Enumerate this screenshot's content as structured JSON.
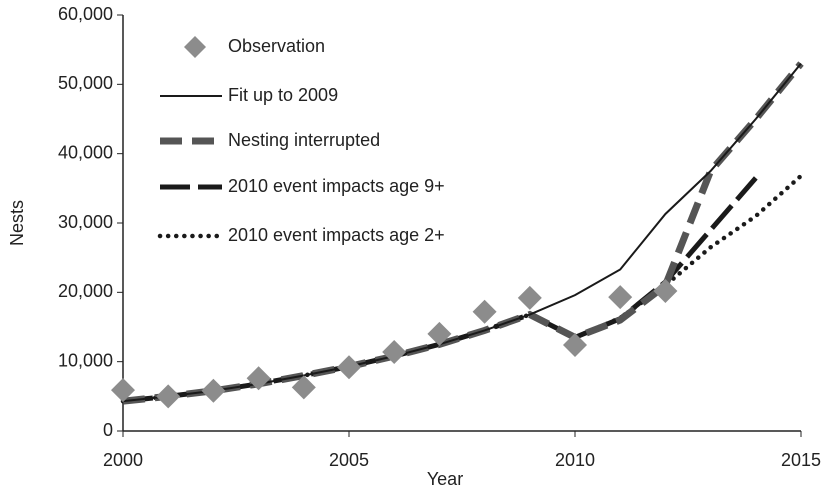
{
  "chart_data": {
    "type": "line",
    "x_label": "Year",
    "y_label": "Nests",
    "x": [
      2000,
      2001,
      2002,
      2003,
      2004,
      2005,
      2006,
      2007,
      2008,
      2009,
      2010,
      2011,
      2012,
      2013,
      2014,
      2015
    ],
    "series": [
      {
        "name": "Observation",
        "color": "#8c8c8c",
        "style": "diamond",
        "values": [
          5900,
          5000,
          5800,
          7600,
          6300,
          9200,
          11400,
          14000,
          17200,
          19200,
          12400,
          19300,
          20200,
          null,
          null,
          null
        ]
      },
      {
        "name": "Fit up to 2009",
        "color": "#1a1a1a",
        "style": "thin",
        "values": [
          4300,
          5000,
          5800,
          6800,
          8000,
          9300,
          10800,
          12500,
          14500,
          16800,
          19600,
          23300,
          31300,
          37500,
          45000,
          53000
        ]
      },
      {
        "name": "Nesting interrupted",
        "color": "#555555",
        "style": "dashed",
        "values": [
          4300,
          5000,
          5800,
          6800,
          8000,
          9300,
          10800,
          12500,
          14500,
          16800,
          13500,
          16000,
          21000,
          37500,
          45000,
          53000
        ]
      },
      {
        "name": "2010 event impacts age 9+",
        "color": "#1a1a1a",
        "style": "longdash",
        "values": [
          4300,
          5000,
          5800,
          6800,
          8000,
          9300,
          10800,
          12500,
          14500,
          16800,
          13500,
          16200,
          21500,
          29000,
          36500,
          null
        ]
      },
      {
        "name": "2010 event impacts age 2+",
        "color": "#1a1a1a",
        "style": "dotted",
        "values": [
          4300,
          5000,
          5800,
          6800,
          8000,
          9300,
          10800,
          12500,
          14500,
          16800,
          13500,
          16300,
          21000,
          26500,
          31000,
          36800
        ]
      }
    ],
    "xlim": [
      2000,
      2015
    ],
    "xticks": [
      2000,
      2005,
      2010,
      2015
    ],
    "ylim": [
      0,
      60000
    ],
    "yticks": [
      0,
      {
        "value": 10000,
        "label": "10,000"
      },
      {
        "value": 20000,
        "label": "20,000"
      },
      {
        "value": 30000,
        "label": "30,000"
      },
      {
        "value": 40000,
        "label": "40,000"
      },
      {
        "value": 50000,
        "label": "50,000"
      },
      {
        "value": 60000,
        "label": "60,000"
      }
    ],
    "grid": false
  }
}
